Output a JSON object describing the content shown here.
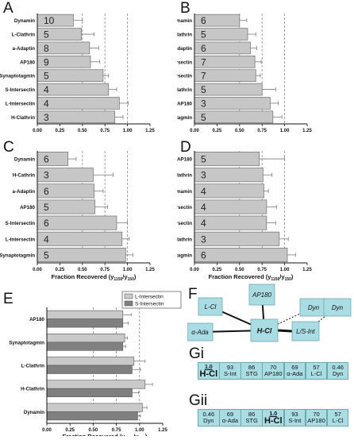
{
  "panels": [
    {
      "letter": "A",
      "categories": [
        "Dynamin",
        "L-Clathrin",
        "a-Adaptin",
        "AP180",
        "Synaptotagmin",
        "S-Intersectin",
        "L-Intersectin",
        "H-Clathrin"
      ],
      "values": [
        0.4,
        0.49,
        0.58,
        0.59,
        0.73,
        0.79,
        0.91,
        0.86
      ],
      "errors": [
        0.1,
        0.14,
        0.1,
        0.1,
        0.06,
        0.09,
        0.1,
        0.09
      ],
      "n": [
        "10",
        "5",
        "8",
        "9",
        "5",
        "4",
        "4",
        "3"
      ],
      "xlim": [
        0,
        1.25
      ],
      "xticks": [
        "0.00",
        "0.25",
        "0.50",
        "0.75",
        "1.00",
        "1.25"
      ],
      "xlabel": ""
    },
    {
      "letter": "B",
      "categories": [
        "Dynamin",
        "H-Clathrin",
        "a-Adaptin",
        "L-Intersectin",
        "S-Intersectin",
        "L-Clathrin",
        "AP180",
        "Synaptotagmin"
      ],
      "values": [
        0.5,
        0.59,
        0.62,
        0.67,
        0.68,
        0.75,
        0.84,
        0.87
      ],
      "errors": [
        0.08,
        0.09,
        0.07,
        0.07,
        0.05,
        0.15,
        0.09,
        0.1
      ],
      "n": [
        "6",
        "5",
        "6",
        "7",
        "7",
        "5",
        "3",
        "5"
      ],
      "xlim": [
        0,
        1.25
      ],
      "xticks": [
        "0.00",
        "0.25",
        "0.50",
        "0.75",
        "1.00",
        "1.25"
      ],
      "xlabel": ""
    },
    {
      "letter": "C",
      "categories": [
        "Dynamin",
        "H-Cathrin",
        "a-Adaptin",
        "AP180",
        "S-Intersectin",
        "L-Intersectin",
        "Synaptotagmin"
      ],
      "values": [
        0.34,
        0.62,
        0.63,
        0.64,
        0.88,
        0.94,
        0.98
      ],
      "errors": [
        0.09,
        0.22,
        0.1,
        0.14,
        0.12,
        0.08,
        0.08
      ],
      "n": [
        "6",
        "3",
        "6",
        "5",
        "6",
        "4",
        "5"
      ],
      "xlim": [
        0,
        1.25
      ],
      "xticks": [
        "0.00",
        "0.25",
        "0.50",
        "0.75",
        "1.00",
        "1.25"
      ],
      "xlabel": "Fraction Recovered (y",
      "xlabel_sub1": "1150",
      "xlabel_mid": "/y",
      "xlabel_sub2": "150",
      "xlabel_end": ")"
    },
    {
      "letter": "D",
      "categories": [
        "AP180",
        "H-Clathrin",
        "Dynamin",
        "S-Intersectin",
        "L-Intersectin",
        "L-Clathrin",
        "Synaptotagmin"
      ],
      "values": [
        0.72,
        0.76,
        0.77,
        0.8,
        0.8,
        0.94,
        1.03
      ],
      "errors": [
        0.28,
        0.1,
        0.05,
        0.11,
        0.1,
        0.1,
        0.09
      ],
      "n": [
        "5",
        "3",
        "4",
        "4",
        "4",
        "3",
        "6"
      ],
      "xlim": [
        0,
        1.25
      ],
      "xticks": [
        "0.00",
        "0.25",
        "0.50",
        "0.75",
        "1.00",
        "1.25"
      ],
      "xlabel": "Fraction Recovered (y",
      "xlabel_sub1": "1150",
      "xlabel_mid": "/y",
      "xlabel_sub2": "150",
      "xlabel_end": ")"
    }
  ],
  "panelE": {
    "letter": "E",
    "categories": [
      "AP180",
      "Synaptotagmin",
      "L-Clathrin",
      "H-Clathrin",
      "Dynamin"
    ],
    "series": [
      {
        "name": "L-Intersectin",
        "values": [
          0.82,
          0.84,
          0.94,
          1.06,
          1.03
        ],
        "errors": [
          0.09,
          0.03,
          0.12,
          0.08,
          0.05
        ]
      },
      {
        "name": "S-Intersectin",
        "values": [
          0.82,
          0.82,
          0.92,
          0.92,
          0.98
        ],
        "errors": [
          0.06,
          0.03,
          0.09,
          0.07,
          0.03
        ]
      }
    ],
    "colors": [
      "#c9c9c9",
      "#808080"
    ],
    "xlim": [
      0,
      1.25
    ],
    "xticks": [
      "0.00",
      "0.25",
      "0.50",
      "0.75",
      "1.00",
      "1.25"
    ],
    "xlabel": "Fraction Recovered (y",
    "xlabel_sub1": "1150",
    "xlabel_mid": "/y",
    "xlabel_sub2": "150",
    "xlabel_end": ")"
  },
  "panelF": {
    "letter": "F",
    "center": "H-Cl",
    "nodes": [
      "L-Cl",
      "AP180",
      "Dyn",
      "Dyn",
      "α-Ada",
      "L/S-Int"
    ],
    "node_color": "#a9dde3"
  },
  "panelGi": {
    "letter": "Gi",
    "cells": [
      {
        "num": "1.0",
        "name": "H-Cl",
        "strong": true
      },
      {
        "num": "93",
        "name": "S-Int"
      },
      {
        "num": "86",
        "name": "STG"
      },
      {
        "num": "70",
        "name": "AP180"
      },
      {
        "num": "69",
        "name": "α-Ada"
      },
      {
        "num": "57",
        "name": "L-Cl"
      },
      {
        "num": "0.46",
        "name": "Dyn"
      }
    ]
  },
  "panelGii": {
    "letter": "Gii",
    "cells": [
      {
        "num": "0.46",
        "name": "Dyn"
      },
      {
        "num": "69",
        "name": "α-Ada"
      },
      {
        "num": "86",
        "name": "STG"
      },
      {
        "num": "1.0",
        "name": "H-Cl",
        "strong": true
      },
      {
        "num": "93",
        "name": "S-Int"
      },
      {
        "num": "70",
        "name": "AP180"
      },
      {
        "num": "57",
        "name": "L-Cl"
      }
    ]
  },
  "chart_data": [
    {
      "type": "bar",
      "title": "A",
      "categories": [
        "Dynamin",
        "L-Clathrin",
        "a-Adaptin",
        "AP180",
        "Synaptotagmin",
        "S-Intersectin",
        "L-Intersectin",
        "H-Clathrin"
      ],
      "values": [
        0.4,
        0.49,
        0.58,
        0.59,
        0.73,
        0.79,
        0.91,
        0.86
      ],
      "xlim": [
        0,
        1.25
      ]
    },
    {
      "type": "bar",
      "title": "B",
      "categories": [
        "Dynamin",
        "H-Clathrin",
        "a-Adaptin",
        "L-Intersectin",
        "S-Intersectin",
        "L-Clathrin",
        "AP180",
        "Synaptotagmin"
      ],
      "values": [
        0.5,
        0.59,
        0.62,
        0.67,
        0.68,
        0.75,
        0.84,
        0.87
      ],
      "xlim": [
        0,
        1.25
      ]
    },
    {
      "type": "bar",
      "title": "C",
      "categories": [
        "Dynamin",
        "H-Cathrin",
        "a-Adaptin",
        "AP180",
        "S-Intersectin",
        "L-Intersectin",
        "Synaptotagmin"
      ],
      "values": [
        0.34,
        0.62,
        0.63,
        0.64,
        0.88,
        0.94,
        0.98
      ],
      "xlim": [
        0,
        1.25
      ]
    },
    {
      "type": "bar",
      "title": "D",
      "categories": [
        "AP180",
        "H-Clathrin",
        "Dynamin",
        "S-Intersectin",
        "L-Intersectin",
        "L-Clathrin",
        "Synaptotagmin"
      ],
      "values": [
        0.72,
        0.76,
        0.77,
        0.8,
        0.8,
        0.94,
        1.03
      ],
      "xlim": [
        0,
        1.25
      ]
    },
    {
      "type": "bar",
      "title": "E",
      "categories": [
        "AP180",
        "Synaptotagmin",
        "L-Clathrin",
        "H-Clathrin",
        "Dynamin"
      ],
      "series": [
        {
          "name": "L-Intersectin",
          "values": [
            0.82,
            0.84,
            0.94,
            1.06,
            1.03
          ]
        },
        {
          "name": "S-Intersectin",
          "values": [
            0.82,
            0.82,
            0.92,
            0.92,
            0.98
          ]
        }
      ],
      "xlim": [
        0,
        1.25
      ]
    }
  ]
}
